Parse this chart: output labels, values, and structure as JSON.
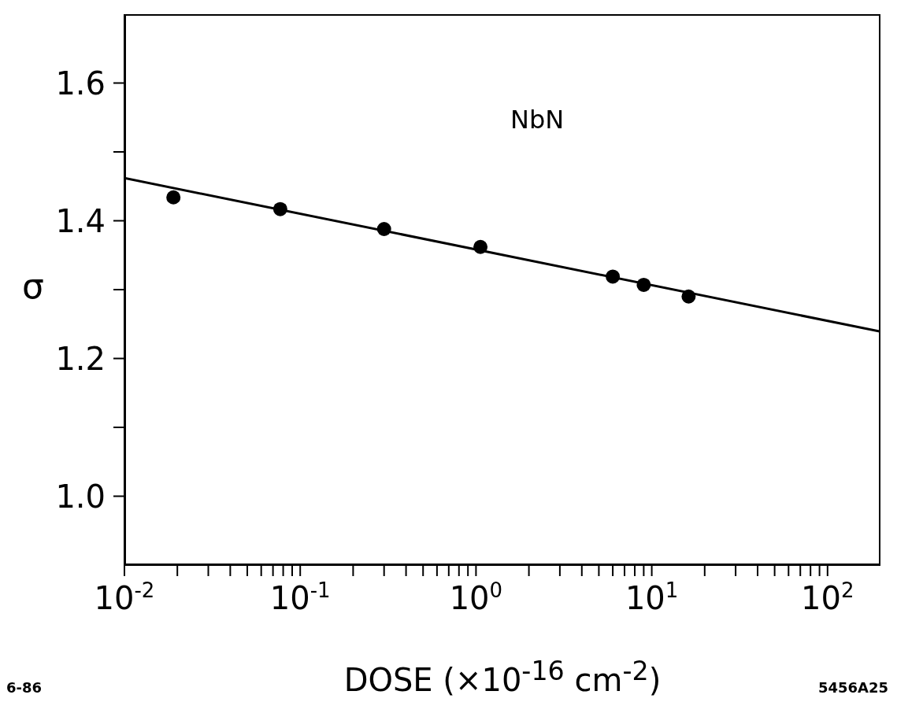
{
  "chart_data": {
    "type": "scatter",
    "xlabel": "DOSE  (×10$^{-16}$ cm$^{-2}$)",
    "ylabel": "σ",
    "log": "x",
    "marker": "circle",
    "xlim": [
      0.01,
      200
    ],
    "ylim": [
      0.9,
      1.7
    ],
    "xticks": [
      {
        "value": 0.01,
        "label": "10$^{-2}$"
      },
      {
        "value": 0.02,
        "label": null
      },
      {
        "value": 0.03,
        "label": null
      },
      {
        "value": 0.04,
        "label": null
      },
      {
        "value": 0.05,
        "label": null
      },
      {
        "value": 0.06,
        "label": null
      },
      {
        "value": 0.07,
        "label": null
      },
      {
        "value": 0.08,
        "label": null
      },
      {
        "value": 0.09,
        "label": null
      },
      {
        "value": 0.1,
        "label": "10$^{-1}$"
      },
      {
        "value": 0.2,
        "label": null
      },
      {
        "value": 0.3,
        "label": null
      },
      {
        "value": 0.4,
        "label": null
      },
      {
        "value": 0.5,
        "label": null
      },
      {
        "value": 0.6,
        "label": null
      },
      {
        "value": 0.7,
        "label": null
      },
      {
        "value": 0.8,
        "label": null
      },
      {
        "value": 0.9,
        "label": null
      },
      {
        "value": 1,
        "label": "10$^{0}$"
      },
      {
        "value": 2,
        "label": null
      },
      {
        "value": 3,
        "label": null
      },
      {
        "value": 4,
        "label": null
      },
      {
        "value": 5,
        "label": null
      },
      {
        "value": 6,
        "label": null
      },
      {
        "value": 7,
        "label": null
      },
      {
        "value": 8,
        "label": null
      },
      {
        "value": 9,
        "label": null
      },
      {
        "value": 10,
        "label": "10$^{1}$"
      },
      {
        "value": 20,
        "label": null
      },
      {
        "value": 30,
        "label": null
      },
      {
        "value": 40,
        "label": null
      },
      {
        "value": 50,
        "label": null
      },
      {
        "value": 60,
        "label": null
      },
      {
        "value": 70,
        "label": null
      },
      {
        "value": 80,
        "label": null
      },
      {
        "value": 90,
        "label": null
      },
      {
        "value": 100,
        "label": "10$^{2}$"
      }
    ],
    "yticks": [
      {
        "value": 1.0,
        "label": "1.0"
      },
      {
        "value": 1.1,
        "label": null
      },
      {
        "value": 1.2,
        "label": "1.2"
      },
      {
        "value": 1.3,
        "label": null
      },
      {
        "value": 1.4,
        "label": "1.4"
      },
      {
        "value": 1.5,
        "label": null
      },
      {
        "value": 1.6,
        "label": "1.6"
      }
    ],
    "series": [
      {
        "color": "#000000",
        "x": [
          0.019,
          0.077,
          0.3,
          1.06,
          6.0,
          9.0,
          16.2
        ],
        "values": [
          1.434,
          1.417,
          1.388,
          1.362,
          1.319,
          1.307,
          1.29
        ]
      },
      {
        "type": "line",
        "color": "#000000",
        "marker": "none",
        "x": [
          0.01,
          200
        ],
        "values": [
          1.462,
          1.239
        ]
      }
    ],
    "annotations": [
      "NbN",
      "6-86",
      "5456A25"
    ]
  }
}
